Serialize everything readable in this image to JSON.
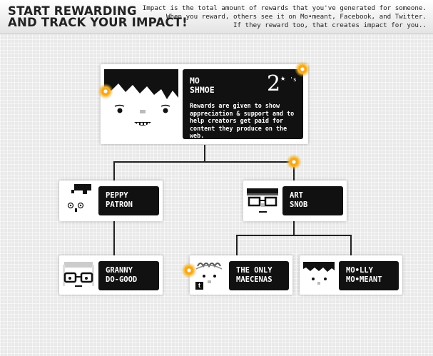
{
  "header": {
    "title_line1": "START REWARDING",
    "title_line2": "AND TRACK YOUR IMPACT!",
    "desc_line1": "Impact is the total amount of rewards that you've generated for someone.",
    "desc_line2": "When you reward, others see it on Mo•meant, Facebook, and Twitter.",
    "desc_line3": "If they reward too, that creates impact for you.."
  },
  "main_card": {
    "name_line1": "MO",
    "name_line2": "SHMOE",
    "reward_count": "2",
    "reward_suffix": "'s",
    "star_icon": "star-icon",
    "info_text": "Rewards are given to show appreciation & support and to help creators get paid for content they produce on the web."
  },
  "tree": [
    {
      "id": "peppy",
      "name_line1": "PEPPY",
      "name_line2": "PATRON"
    },
    {
      "id": "art",
      "name_line1": "ART",
      "name_line2": "SNOB"
    },
    {
      "id": "granny",
      "name_line1": "GRANNY",
      "name_line2": "DO-GOOD"
    },
    {
      "id": "maecenas",
      "name_line1": "THE ONLY",
      "name_line2": "MAECENAS"
    },
    {
      "id": "molly",
      "name_line1": "MO•LLY",
      "name_line2": "MO•MEANT"
    }
  ],
  "colors": {
    "accent": "#f7b52b",
    "box": "#111111",
    "background": "#e9e9e9"
  }
}
